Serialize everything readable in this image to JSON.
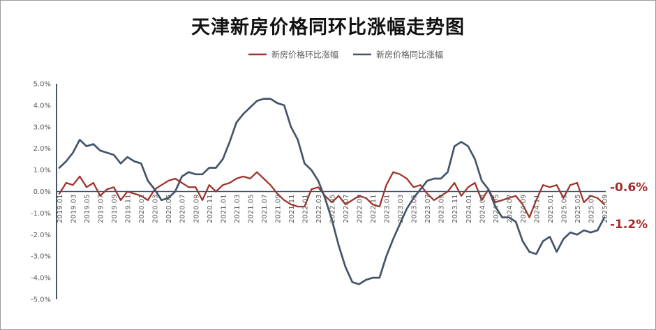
{
  "chart_data": {
    "type": "line",
    "title": "天津新房价格同环比涨幅走势图",
    "xlabel": "",
    "ylabel": "",
    "ylim": [
      -5.0,
      5.0
    ],
    "y_ticks": [
      "5.0%",
      "4.0%",
      "3.0%",
      "2.0%",
      "1.0%",
      "0.0%",
      "-1.0%",
      "-2.0%",
      "-3.0%",
      "-4.0%",
      "-5.0%"
    ],
    "legend_position": "top",
    "grid": false,
    "x": [
      "2019.01",
      "2019.02",
      "2019.03",
      "2019.04",
      "2019.05",
      "2019.06",
      "2019.07",
      "2019.08",
      "2019.09",
      "2019.10",
      "2019.11",
      "2019.12",
      "2020.01",
      "2020.02",
      "2020.03",
      "2020.04",
      "2020.05",
      "2020.06",
      "2020.07",
      "2020.08",
      "2020.09",
      "2020.10",
      "2020.11",
      "2020.12",
      "2021.01",
      "2021.02",
      "2021.03",
      "2021.04",
      "2021.05",
      "2021.06",
      "2021.07",
      "2021.08",
      "2021.09",
      "2021.10",
      "2021.11",
      "2021.12",
      "2022.01",
      "2022.02",
      "2022.03",
      "2022.04",
      "2022.05",
      "2022.06",
      "2022.07",
      "2022.08",
      "2022.09",
      "2022.10",
      "2022.11",
      "2022.12",
      "2023.01",
      "2023.02",
      "2023.03",
      "2023.04",
      "2023.05",
      "2023.06",
      "2023.07",
      "2023.08",
      "2023.09",
      "2023.10",
      "2023.11",
      "2023.12",
      "2024.01",
      "2024.02",
      "2024.03",
      "2024.04",
      "2024.05",
      "2024.06",
      "2024.07",
      "2024.08",
      "2024.09",
      "2024.10",
      "2024.11",
      "2024.12",
      "2025.01",
      "2025.02",
      "2025.03",
      "2025.04",
      "2025.05",
      "2025.06",
      "2025.07",
      "2025.08",
      "2025.09"
    ],
    "tick_labels": [
      "2019.01",
      "2019.03",
      "2019.05",
      "2019.07",
      "2019.09",
      "2019.11",
      "2020.01",
      "2020.03",
      "2020.05",
      "2020.07",
      "2020.09",
      "2020.11",
      "2021.01",
      "2021.03",
      "2021.05",
      "2021.07",
      "2021.09",
      "2021.11",
      "2022.01",
      "2022.03",
      "2022.05",
      "2022.07",
      "2022.09",
      "2022.11",
      "2023.01",
      "2023.03",
      "2023.05",
      "2023.07",
      "2023.09",
      "2023.11",
      "2024.01",
      "2024.03",
      "2024.05",
      "2024.07",
      "2024.09",
      "2024.11",
      "2025.01",
      "2025.03",
      "2025.05",
      "2025.07",
      "2025.09"
    ],
    "series": [
      {
        "name": "新房价格环比涨幅",
        "color": "#a0342b",
        "values": [
          -0.1,
          0.4,
          0.3,
          0.7,
          0.2,
          0.4,
          -0.2,
          0.1,
          0.2,
          -0.4,
          0.0,
          -0.1,
          -0.2,
          -0.4,
          0.1,
          0.3,
          0.5,
          0.6,
          0.4,
          0.2,
          0.2,
          -0.4,
          0.3,
          0.0,
          0.3,
          0.4,
          0.6,
          0.7,
          0.6,
          0.9,
          0.6,
          0.3,
          -0.1,
          -0.4,
          -0.6,
          -0.7,
          -0.7,
          0.1,
          0.2,
          -0.2,
          -0.5,
          -0.2,
          -0.6,
          -0.4,
          -0.2,
          -0.3,
          -0.6,
          -0.7,
          0.3,
          0.9,
          0.8,
          0.6,
          0.2,
          0.3,
          -0.1,
          -0.4,
          -0.2,
          0.0,
          0.4,
          -0.2,
          0.2,
          0.4,
          -0.4,
          0.1,
          -0.5,
          -0.4,
          -0.3,
          -0.2,
          -0.6,
          -1.2,
          -0.4,
          0.3,
          0.2,
          0.3,
          -0.3,
          0.3,
          0.4,
          -0.5,
          -0.2,
          -0.3,
          -0.6
        ],
        "end_label": "-0.6%"
      },
      {
        "name": "新房价格同比涨幅",
        "color": "#44546a",
        "values": [
          1.1,
          1.4,
          1.8,
          2.4,
          2.1,
          2.2,
          1.9,
          1.8,
          1.7,
          1.3,
          1.6,
          1.4,
          1.3,
          0.5,
          0.1,
          -0.4,
          -0.3,
          0.0,
          0.7,
          0.9,
          0.8,
          0.8,
          1.1,
          1.1,
          1.5,
          2.3,
          3.2,
          3.6,
          3.9,
          4.2,
          4.3,
          4.3,
          4.1,
          4.0,
          3.0,
          2.4,
          1.3,
          1.0,
          0.5,
          -0.3,
          -1.3,
          -2.5,
          -3.5,
          -4.2,
          -4.3,
          -4.1,
          -4.0,
          -4.0,
          -3.0,
          -2.2,
          -1.5,
          -0.8,
          -0.3,
          0.1,
          0.5,
          0.6,
          0.6,
          0.9,
          2.1,
          2.3,
          2.1,
          1.5,
          0.5,
          0.1,
          -0.7,
          -1.2,
          -1.2,
          -1.4,
          -2.3,
          -2.8,
          -2.9,
          -2.3,
          -2.1,
          -2.8,
          -2.2,
          -1.9,
          -2.0,
          -1.8,
          -1.9,
          -1.8,
          -1.2
        ],
        "end_label": "-1.2%"
      }
    ]
  }
}
